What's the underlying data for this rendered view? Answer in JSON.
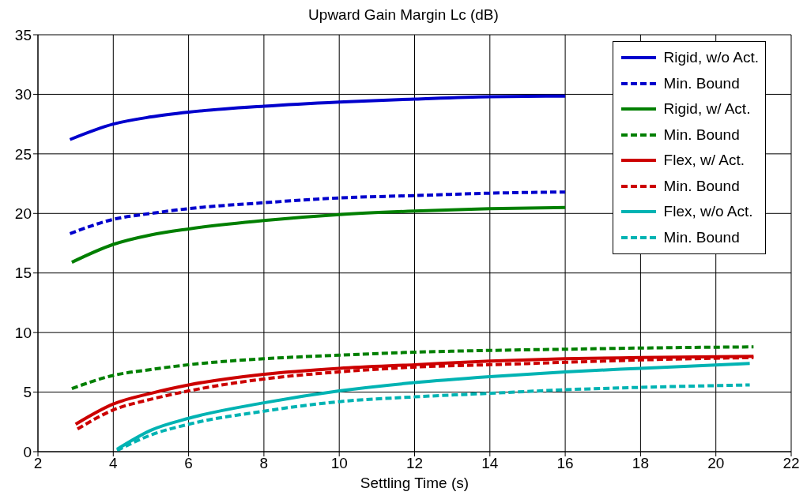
{
  "chart_data": {
    "type": "line",
    "title": "Upward Gain Margin Lc (dB)",
    "xlabel": "Settling Time (s)",
    "xlim": [
      2,
      22
    ],
    "xticks": [
      2,
      4,
      6,
      8,
      10,
      12,
      14,
      16,
      18,
      20,
      22
    ],
    "ylim": [
      0,
      35
    ],
    "yticks": [
      0,
      5,
      10,
      15,
      20,
      25,
      30,
      35
    ],
    "grid": true,
    "legend": "top right",
    "marker": "none",
    "series": [
      {
        "name": "Rigid, w/o Act.",
        "color": "#0000cc",
        "line_style": "solid",
        "x": [
          2.85,
          4,
          5,
          6,
          8,
          10,
          12,
          14,
          16
        ],
        "values": [
          26.2,
          27.5,
          28.1,
          28.5,
          29.0,
          29.35,
          29.6,
          29.8,
          29.85
        ]
      },
      {
        "name": "Min. Bound",
        "color": "#0000cc",
        "line_style": "dashed",
        "x": [
          2.85,
          4,
          5,
          6,
          8,
          10,
          12,
          14,
          16
        ],
        "values": [
          18.3,
          19.5,
          20.0,
          20.4,
          20.9,
          21.3,
          21.5,
          21.7,
          21.8
        ]
      },
      {
        "name": "Rigid, w/ Act.",
        "color": "#007f00",
        "line_style": "solid",
        "x": [
          2.9,
          4,
          5,
          6,
          8,
          10,
          12,
          14,
          16
        ],
        "values": [
          15.9,
          17.4,
          18.2,
          18.7,
          19.4,
          19.9,
          20.2,
          20.4,
          20.5
        ]
      },
      {
        "name": "Min. Bound",
        "color": "#007f00",
        "line_style": "dashed",
        "x": [
          2.9,
          4,
          5,
          6,
          8,
          10,
          12,
          14,
          16,
          18,
          21
        ],
        "values": [
          5.3,
          6.4,
          6.9,
          7.3,
          7.8,
          8.1,
          8.35,
          8.5,
          8.6,
          8.7,
          8.8
        ]
      },
      {
        "name": "Flex, w/ Act.",
        "color": "#cc0000",
        "line_style": "solid",
        "x": [
          3.0,
          4,
          5,
          6,
          8,
          10,
          12,
          14,
          16,
          18,
          21
        ],
        "values": [
          2.3,
          4.0,
          4.9,
          5.6,
          6.5,
          7.0,
          7.3,
          7.6,
          7.8,
          7.9,
          8.0
        ]
      },
      {
        "name": "Min. Bound",
        "color": "#cc0000",
        "line_style": "dashed",
        "x": [
          3.05,
          4,
          5,
          6,
          8,
          10,
          12,
          14,
          16,
          18,
          21
        ],
        "values": [
          1.9,
          3.5,
          4.4,
          5.1,
          6.1,
          6.7,
          7.1,
          7.3,
          7.5,
          7.7,
          7.9
        ]
      },
      {
        "name": "Flex, w/o Act.",
        "color": "#00b3b3",
        "line_style": "solid",
        "x": [
          4.1,
          5,
          6,
          8,
          10,
          12,
          14,
          16,
          18,
          20.9
        ],
        "values": [
          0.2,
          1.8,
          2.8,
          4.1,
          5.1,
          5.8,
          6.3,
          6.7,
          7.0,
          7.4
        ]
      },
      {
        "name": "Min. Bound",
        "color": "#00b3b3",
        "line_style": "dashed",
        "x": [
          4.1,
          5,
          6,
          8,
          10,
          12,
          14,
          16,
          18,
          20.9
        ],
        "values": [
          0.1,
          1.4,
          2.3,
          3.4,
          4.2,
          4.6,
          4.9,
          5.2,
          5.4,
          5.6
        ]
      }
    ]
  }
}
